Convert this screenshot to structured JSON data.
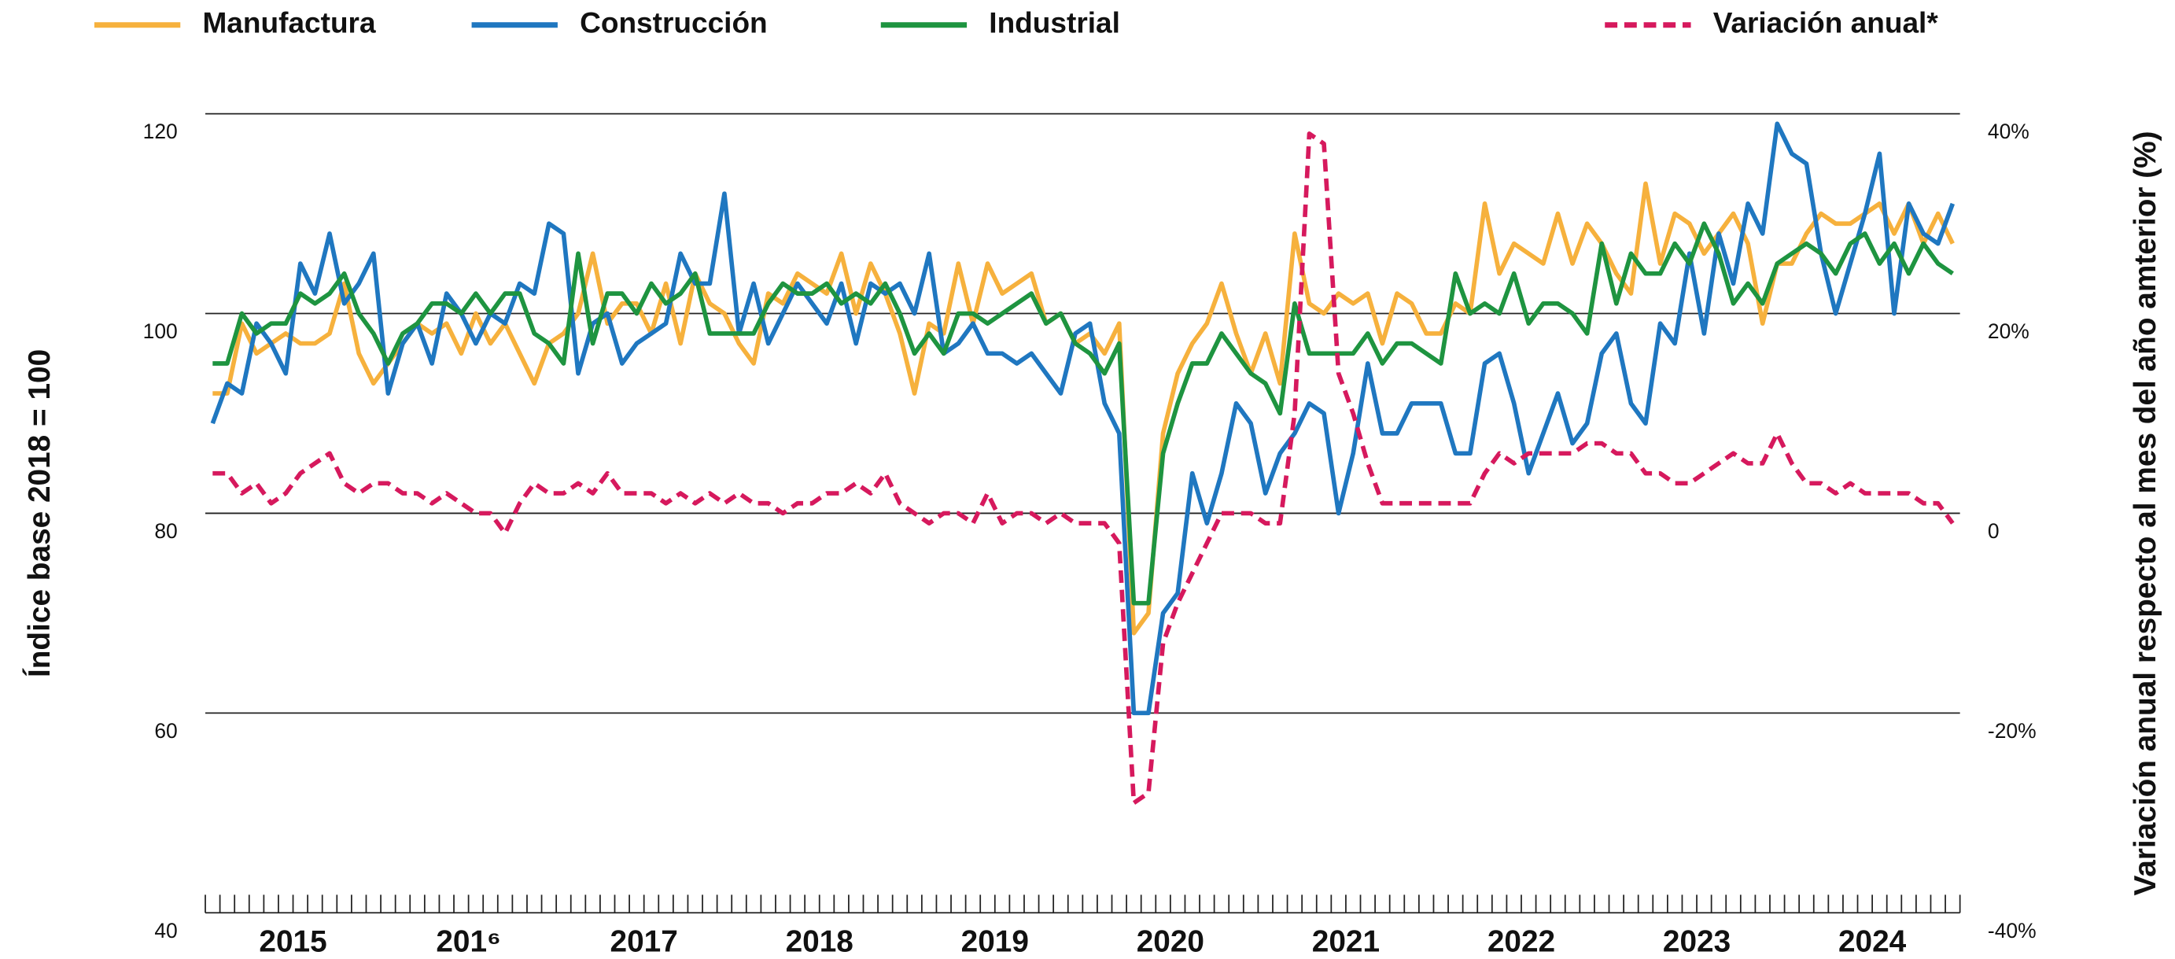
{
  "chart_data": {
    "type": "line",
    "legend": "top",
    "grid": true,
    "ylabel": "Índice base 2018 = 100",
    "y2label": "Variación anual respecto al mes del año amterior (%)",
    "ylim": [
      40,
      120
    ],
    "yticks": [
      40,
      60,
      80,
      100,
      120
    ],
    "y2lim": [
      -40,
      40
    ],
    "y2ticks": [
      {
        "value": -40,
        "label": "-40%"
      },
      {
        "value": -20,
        "label": "-20%"
      },
      0,
      {
        "value": 20,
        "label": "20%"
      },
      {
        "value": 40,
        "label": "40%"
      }
    ],
    "categories": [
      null,
      null,
      null,
      null,
      null,
      null,
      "2015",
      null,
      null,
      null,
      null,
      null,
      null,
      null,
      null,
      null,
      null,
      null,
      "201⁶",
      null,
      null,
      null,
      null,
      null,
      null,
      null,
      null,
      null,
      null,
      null,
      "2017",
      null,
      null,
      null,
      null,
      null,
      null,
      null,
      null,
      null,
      null,
      null,
      "2018",
      null,
      null,
      null,
      null,
      null,
      null,
      null,
      null,
      null,
      null,
      null,
      "2019",
      null,
      null,
      null,
      null,
      null,
      null,
      null,
      null,
      null,
      null,
      null,
      "2020",
      null,
      null,
      null,
      null,
      null,
      null,
      null,
      null,
      null,
      null,
      null,
      "2021",
      null,
      null,
      null,
      null,
      null,
      null,
      null,
      null,
      null,
      null,
      null,
      "2022",
      null,
      null,
      null,
      null,
      null,
      null,
      null,
      null,
      null,
      null,
      null,
      "2023",
      null,
      null,
      null,
      null,
      null,
      null,
      null,
      null,
      null,
      null,
      null,
      "2024",
      null,
      null,
      null,
      null,
      null
    ],
    "series": [
      {
        "name": "Manufactura",
        "color": "#f6b13d",
        "style": "solid",
        "axis": "y",
        "values": [
          92,
          92,
          99,
          96,
          97,
          98,
          97,
          97,
          98,
          103,
          96,
          93,
          95,
          97,
          99,
          98,
          99,
          96,
          100,
          97,
          99,
          96,
          93,
          97,
          98,
          100,
          106,
          99,
          101,
          101,
          98,
          103,
          97,
          104,
          101,
          100,
          97,
          95,
          102,
          101,
          104,
          103,
          102,
          106,
          100,
          105,
          102,
          98,
          92,
          99,
          98,
          105,
          99,
          105,
          102,
          103,
          104,
          99,
          100,
          97,
          98,
          96,
          99,
          68,
          70,
          88,
          94,
          97,
          99,
          103,
          98,
          94,
          98,
          93,
          108,
          101,
          100,
          102,
          101,
          102,
          97,
          102,
          101,
          98,
          98,
          101,
          100,
          111,
          104,
          107,
          106,
          105,
          110,
          105,
          109,
          107,
          104,
          102,
          113,
          105,
          110,
          109,
          106,
          108,
          110,
          107,
          99,
          105,
          105,
          108,
          110,
          109,
          109,
          110,
          111,
          108,
          111,
          107,
          110,
          107
        ]
      },
      {
        "name": "Construcción",
        "color": "#1f77c0",
        "style": "solid",
        "axis": "y",
        "values": [
          89,
          93,
          92,
          99,
          97,
          94,
          105,
          102,
          108,
          101,
          103,
          106,
          92,
          97,
          99,
          95,
          102,
          100,
          97,
          100,
          99,
          103,
          102,
          109,
          108,
          94,
          99,
          100,
          95,
          97,
          98,
          99,
          106,
          103,
          103,
          112,
          98,
          103,
          97,
          100,
          103,
          101,
          99,
          103,
          97,
          103,
          102,
          103,
          100,
          106,
          96,
          97,
          99,
          96,
          96,
          95,
          96,
          94,
          92,
          98,
          99,
          91,
          88,
          60,
          60,
          70,
          72,
          84,
          79,
          84,
          91,
          89,
          82,
          86,
          88,
          91,
          90,
          80,
          86,
          95,
          88,
          88,
          91,
          91,
          91,
          86,
          86,
          95,
          96,
          91,
          84,
          88,
          92,
          87,
          89,
          96,
          98,
          91,
          89,
          99,
          97,
          106,
          98,
          108,
          103,
          111,
          108,
          119,
          116,
          115,
          106,
          100,
          105,
          110,
          116,
          100,
          111,
          108,
          107,
          111
        ]
      },
      {
        "name": "Industrial",
        "color": "#1e9440",
        "style": "solid",
        "axis": "y",
        "values": [
          95,
          95,
          100,
          98,
          99,
          99,
          102,
          101,
          102,
          104,
          100,
          98,
          95,
          98,
          99,
          101,
          101,
          100,
          102,
          100,
          102,
          102,
          98,
          97,
          95,
          106,
          97,
          102,
          102,
          100,
          103,
          101,
          102,
          104,
          98,
          98,
          98,
          98,
          101,
          103,
          102,
          102,
          103,
          101,
          102,
          101,
          103,
          100,
          96,
          98,
          96,
          100,
          100,
          99,
          100,
          101,
          102,
          99,
          100,
          97,
          96,
          94,
          97,
          71,
          71,
          86,
          91,
          95,
          95,
          98,
          96,
          94,
          93,
          90,
          101,
          96,
          96,
          96,
          96,
          98,
          95,
          97,
          97,
          96,
          95,
          104,
          100,
          101,
          100,
          104,
          99,
          101,
          101,
          100,
          98,
          107,
          101,
          106,
          104,
          104,
          107,
          105,
          109,
          106,
          101,
          103,
          101,
          105,
          106,
          107,
          106,
          104,
          107,
          108,
          105,
          107,
          104,
          107,
          105,
          104
        ]
      },
      {
        "name": "Variación anual*",
        "color": "#d6195d",
        "style": "dashed",
        "axis": "y2",
        "values": [
          4,
          4,
          2,
          3,
          1,
          2,
          4,
          5,
          6,
          3,
          2,
          3,
          3,
          2,
          2,
          1,
          2,
          1,
          0,
          0,
          -2,
          1,
          3,
          2,
          2,
          3,
          2,
          4,
          2,
          2,
          2,
          1,
          2,
          1,
          2,
          1,
          2,
          1,
          1,
          0,
          1,
          1,
          2,
          2,
          3,
          2,
          4,
          1,
          0,
          -1,
          0,
          0,
          -1,
          2,
          -1,
          0,
          0,
          -1,
          0,
          -1,
          -1,
          -1,
          -3,
          -29,
          -28,
          -13,
          -9,
          -6,
          -3,
          0,
          0,
          0,
          -1,
          -1,
          10,
          38,
          37,
          14,
          10,
          5,
          1,
          1,
          1,
          1,
          1,
          1,
          1,
          4,
          6,
          5,
          6,
          6,
          6,
          6,
          7,
          7,
          6,
          6,
          4,
          4,
          3,
          3,
          4,
          5,
          6,
          5,
          5,
          8,
          5,
          3,
          3,
          2,
          3,
          2,
          2,
          2,
          2,
          1,
          1,
          -1
        ]
      }
    ]
  }
}
